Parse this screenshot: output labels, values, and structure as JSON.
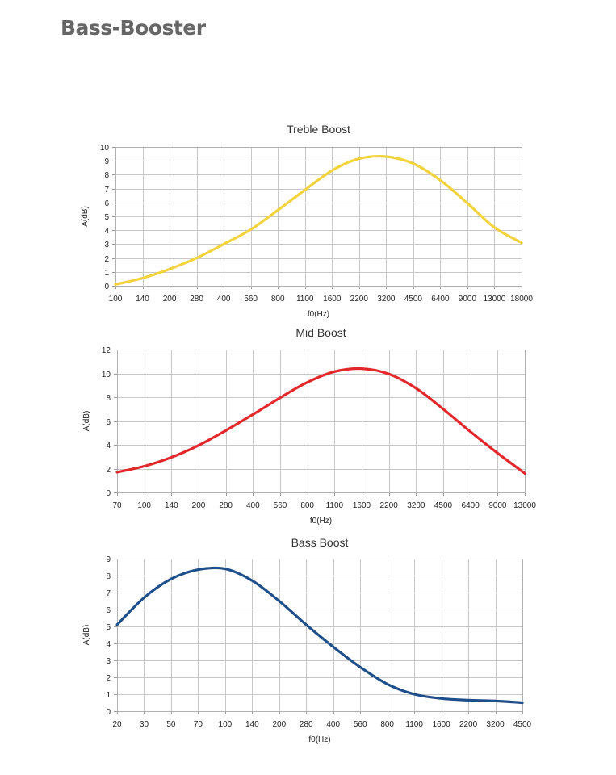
{
  "page": {
    "title": "Bass-Booster"
  },
  "chart_data": [
    {
      "type": "line",
      "title": "Treble Boost",
      "xlabel": "f0(Hz)",
      "ylabel": "A(dB)",
      "x_scale": "categorical",
      "categories": [
        "100",
        "140",
        "200",
        "280",
        "400",
        "560",
        "800",
        "1100",
        "1600",
        "2200",
        "3200",
        "4500",
        "6400",
        "9000",
        "13000",
        "18000"
      ],
      "ylim": [
        0,
        10
      ],
      "yticks": [
        0,
        1,
        2,
        3,
        4,
        5,
        6,
        7,
        8,
        9,
        10
      ],
      "grid": true,
      "series": [
        {
          "color": "#f2d33c",
          "values": [
            0.1,
            0.55,
            1.2,
            2.0,
            3.0,
            4.05,
            5.45,
            6.9,
            8.3,
            9.15,
            9.3,
            8.8,
            7.6,
            5.95,
            4.2,
            3.1
          ]
        }
      ]
    },
    {
      "type": "line",
      "title": "Mid Boost",
      "xlabel": "f0(Hz)",
      "ylabel": "A(dB)",
      "x_scale": "categorical",
      "categories": [
        "70",
        "100",
        "140",
        "200",
        "280",
        "400",
        "560",
        "800",
        "1100",
        "1600",
        "2200",
        "3200",
        "4500",
        "6400",
        "9000",
        "13000"
      ],
      "ylim": [
        0,
        12
      ],
      "yticks": [
        0,
        2,
        4,
        6,
        8,
        10,
        12
      ],
      "grid": true,
      "series": [
        {
          "color": "#e3282b",
          "values": [
            1.7,
            2.2,
            2.95,
            3.95,
            5.2,
            6.55,
            7.95,
            9.25,
            10.15,
            10.4,
            9.95,
            8.75,
            7.0,
            5.1,
            3.3,
            1.6
          ]
        }
      ]
    },
    {
      "type": "line",
      "title": "Bass Boost",
      "xlabel": "f0(Hz)",
      "ylabel": "A(dB)",
      "x_scale": "categorical",
      "categories": [
        "20",
        "30",
        "50",
        "70",
        "100",
        "140",
        "200",
        "280",
        "400",
        "560",
        "800",
        "1100",
        "1600",
        "2200",
        "3200",
        "4500"
      ],
      "ylim": [
        0,
        9
      ],
      "yticks": [
        0,
        1,
        2,
        3,
        4,
        5,
        6,
        7,
        8,
        9
      ],
      "grid": true,
      "series": [
        {
          "color": "#1f4f8a",
          "values": [
            5.1,
            6.7,
            7.8,
            8.35,
            8.4,
            7.7,
            6.5,
            5.1,
            3.8,
            2.6,
            1.6,
            1.0,
            0.75,
            0.65,
            0.6,
            0.5
          ]
        }
      ]
    }
  ]
}
